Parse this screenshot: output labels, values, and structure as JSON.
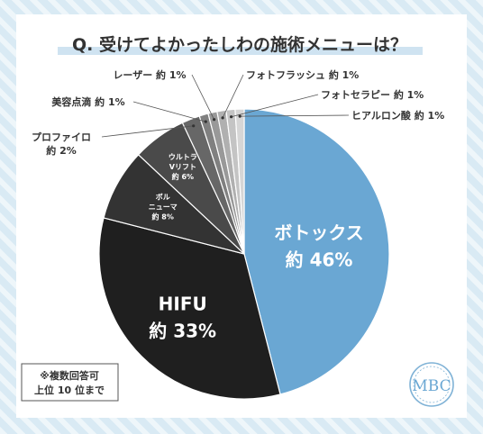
{
  "chart_data": {
    "type": "pie",
    "title": "Q. 受けてよかったしわの施術メニューは？",
    "slices": [
      {
        "label": "ボトックス",
        "value_text": "約 46%",
        "value": 46,
        "color": "#6aa7d3"
      },
      {
        "label": "HIFU",
        "value_text": "約 33%",
        "value": 33,
        "color": "#1f1f1f"
      },
      {
        "label": "ボルニューマ",
        "lines": [
          "ボル",
          "ニューマ"
        ],
        "value_text": "約 8%",
        "value": 8,
        "color": "#333333"
      },
      {
        "label": "ウルトラVリフト",
        "lines": [
          "ウルトラ",
          "Vリフト"
        ],
        "value_text": "約 6%",
        "value": 6,
        "color": "#4a4a4a"
      },
      {
        "label": "プロファイロ",
        "value_text": "約 2%",
        "value": 2,
        "color": "#676767"
      },
      {
        "label": "美容点滴",
        "value_text": "約 1%",
        "value": 1,
        "color": "#808080"
      },
      {
        "label": "レーザー",
        "value_text": "約 1%",
        "value": 1,
        "color": "#999999"
      },
      {
        "label": "フォトフラッシュ",
        "value_text": "約 1%",
        "value": 1,
        "color": "#b0b0b0"
      },
      {
        "label": "フォトセラピー",
        "value_text": "約 1%",
        "value": 1,
        "color": "#c4c4c4"
      },
      {
        "label": "ヒアルロン酸",
        "value_text": "約 1%",
        "value": 1,
        "color": "#d6d6d6"
      }
    ]
  },
  "note": [
    "※複数回答可",
    "上位 10 位まで"
  ],
  "logo_text": "MBC",
  "colors": {
    "title_underline": "#cfe3f1",
    "background": "#d9eaf4",
    "accent": "#6aa7d3"
  }
}
